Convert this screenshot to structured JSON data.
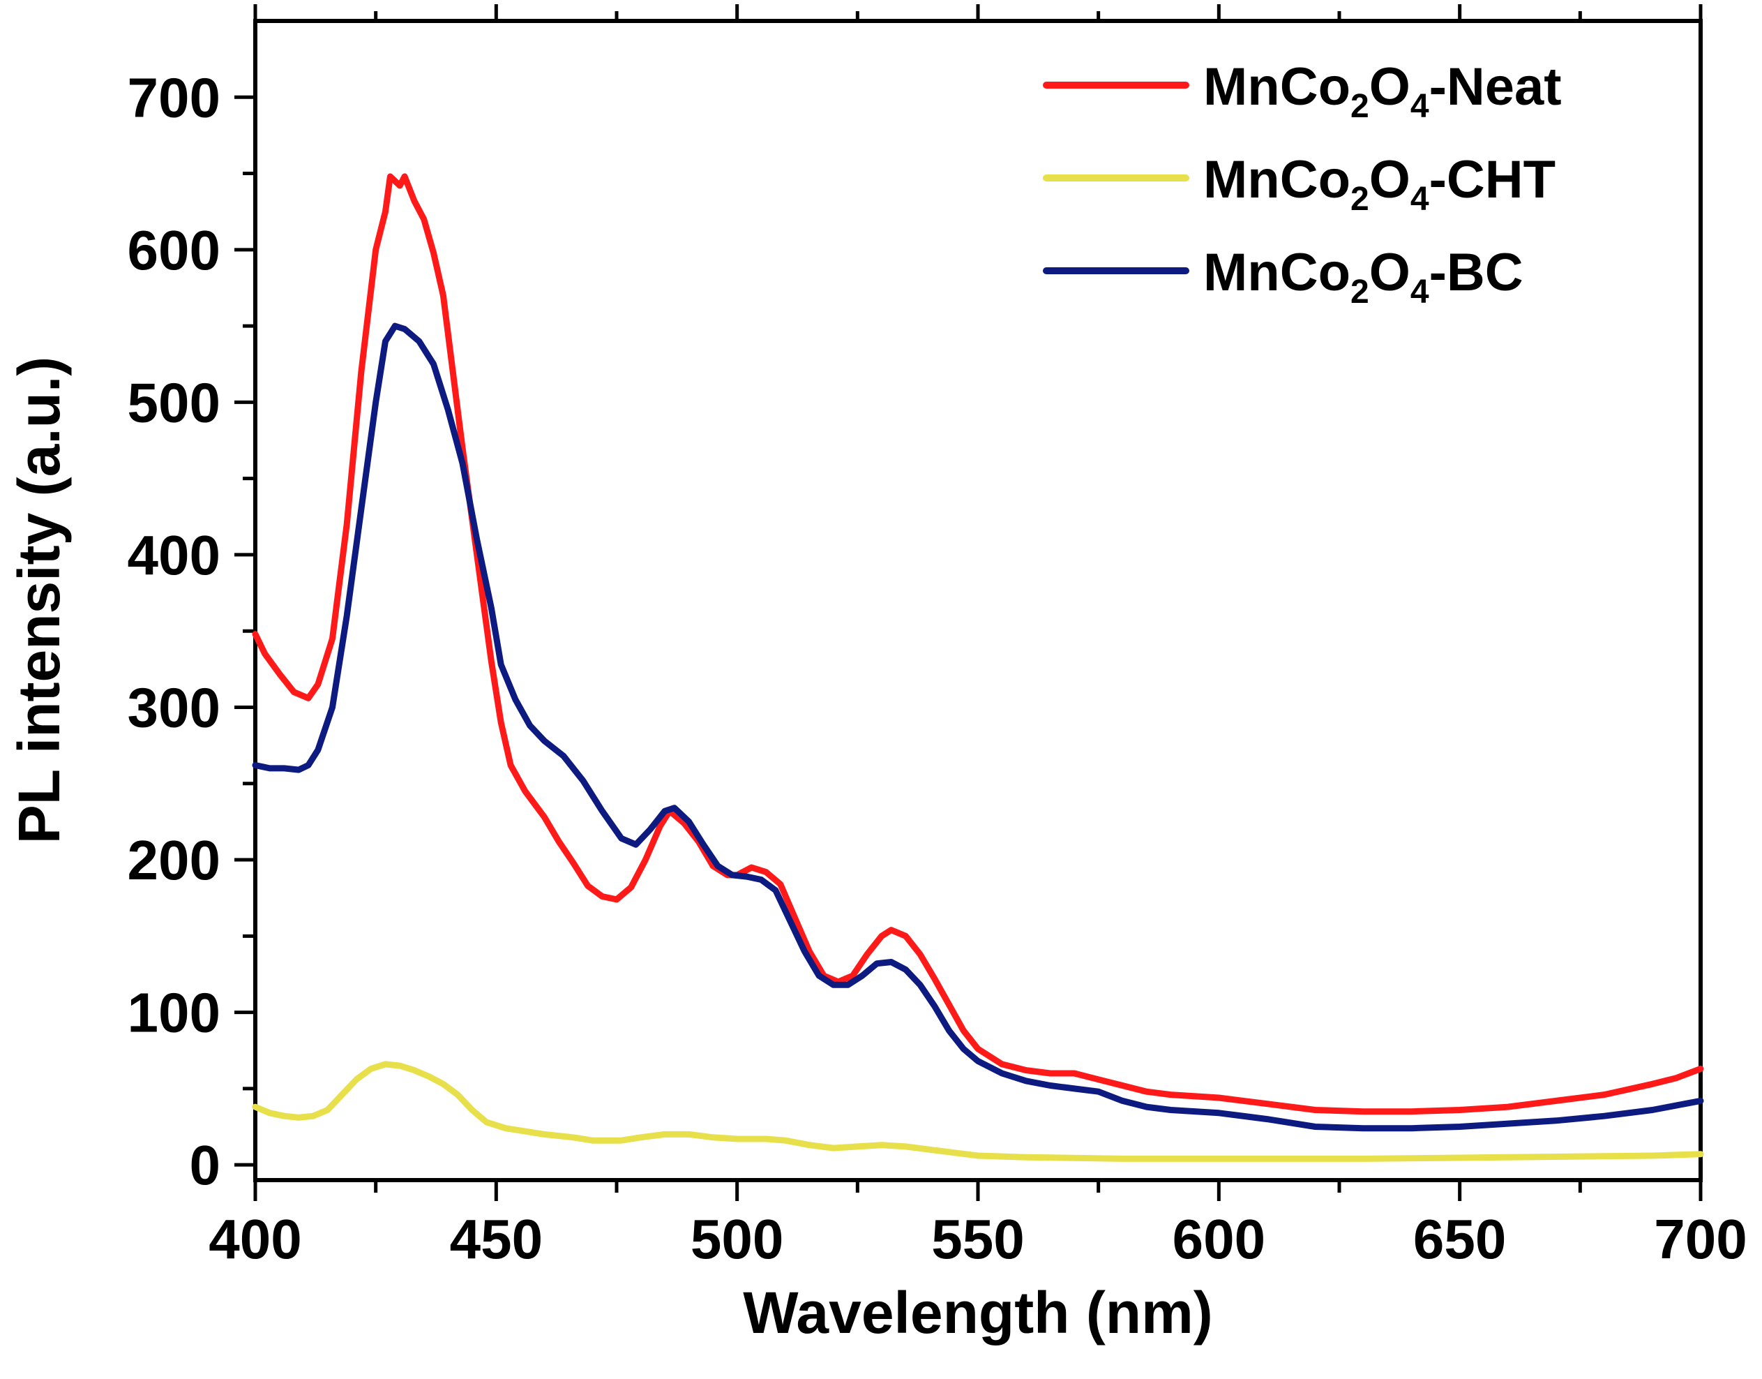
{
  "chart_data": {
    "type": "line",
    "title": "",
    "xlabel": "Wavelength (nm)",
    "ylabel": "PL intensity (a.u.)",
    "xlim": [
      400,
      700
    ],
    "ylim": [
      -10,
      750
    ],
    "xticks": [
      400,
      450,
      500,
      550,
      600,
      650,
      700
    ],
    "yticks": [
      0,
      100,
      200,
      300,
      400,
      500,
      600,
      700
    ],
    "legend_position": "top-right",
    "series": [
      {
        "name": "MnCo2O4-Neat",
        "legend": {
          "base": "MnCo",
          "sub1": "2",
          "mid": "O",
          "sub2": "4",
          "suffix": "-Neat"
        },
        "color": "#ff1a1a",
        "points": [
          [
            400,
            348
          ],
          [
            402,
            335
          ],
          [
            405,
            322
          ],
          [
            408,
            310
          ],
          [
            411,
            306
          ],
          [
            413,
            315
          ],
          [
            416,
            345
          ],
          [
            419,
            420
          ],
          [
            422,
            520
          ],
          [
            425,
            600
          ],
          [
            427,
            625
          ],
          [
            428,
            648
          ],
          [
            430,
            642
          ],
          [
            431,
            648
          ],
          [
            433,
            632
          ],
          [
            435,
            620
          ],
          [
            437,
            598
          ],
          [
            439,
            570
          ],
          [
            441,
            520
          ],
          [
            443,
            470
          ],
          [
            446,
            400
          ],
          [
            449,
            330
          ],
          [
            451,
            290
          ],
          [
            453,
            262
          ],
          [
            456,
            245
          ],
          [
            460,
            228
          ],
          [
            463,
            212
          ],
          [
            466,
            198
          ],
          [
            469,
            183
          ],
          [
            472,
            176
          ],
          [
            475,
            174
          ],
          [
            478,
            182
          ],
          [
            481,
            200
          ],
          [
            484,
            222
          ],
          [
            486,
            232
          ],
          [
            489,
            224
          ],
          [
            492,
            212
          ],
          [
            495,
            196
          ],
          [
            498,
            190
          ],
          [
            500,
            190
          ],
          [
            503,
            195
          ],
          [
            506,
            192
          ],
          [
            509,
            184
          ],
          [
            512,
            162
          ],
          [
            515,
            140
          ],
          [
            518,
            124
          ],
          [
            521,
            120
          ],
          [
            524,
            124
          ],
          [
            527,
            138
          ],
          [
            530,
            150
          ],
          [
            532,
            154
          ],
          [
            535,
            150
          ],
          [
            538,
            138
          ],
          [
            541,
            122
          ],
          [
            544,
            105
          ],
          [
            547,
            88
          ],
          [
            550,
            76
          ],
          [
            555,
            66
          ],
          [
            560,
            62
          ],
          [
            565,
            60
          ],
          [
            570,
            60
          ],
          [
            575,
            56
          ],
          [
            580,
            52
          ],
          [
            585,
            48
          ],
          [
            590,
            46
          ],
          [
            600,
            44
          ],
          [
            610,
            40
          ],
          [
            620,
            36
          ],
          [
            630,
            35
          ],
          [
            640,
            35
          ],
          [
            650,
            36
          ],
          [
            660,
            38
          ],
          [
            670,
            42
          ],
          [
            680,
            46
          ],
          [
            690,
            53
          ],
          [
            695,
            57
          ],
          [
            700,
            63
          ]
        ]
      },
      {
        "name": "MnCo2O4-CHT",
        "legend": {
          "base": "MnCo",
          "sub1": "2",
          "mid": "O",
          "sub2": "4",
          "suffix": "-CHT"
        },
        "color": "#e8e04a",
        "points": [
          [
            400,
            38
          ],
          [
            403,
            34
          ],
          [
            406,
            32
          ],
          [
            409,
            31
          ],
          [
            412,
            32
          ],
          [
            415,
            36
          ],
          [
            418,
            46
          ],
          [
            421,
            56
          ],
          [
            424,
            63
          ],
          [
            427,
            66
          ],
          [
            430,
            65
          ],
          [
            433,
            62
          ],
          [
            436,
            58
          ],
          [
            439,
            53
          ],
          [
            442,
            46
          ],
          [
            445,
            36
          ],
          [
            448,
            28
          ],
          [
            452,
            24
          ],
          [
            456,
            22
          ],
          [
            460,
            20
          ],
          [
            466,
            18
          ],
          [
            470,
            16
          ],
          [
            476,
            16
          ],
          [
            480,
            18
          ],
          [
            485,
            20
          ],
          [
            490,
            20
          ],
          [
            495,
            18
          ],
          [
            500,
            17
          ],
          [
            506,
            17
          ],
          [
            510,
            16
          ],
          [
            515,
            13
          ],
          [
            520,
            11
          ],
          [
            525,
            12
          ],
          [
            530,
            13
          ],
          [
            535,
            12
          ],
          [
            540,
            10
          ],
          [
            545,
            8
          ],
          [
            550,
            6
          ],
          [
            560,
            5
          ],
          [
            580,
            4
          ],
          [
            600,
            4
          ],
          [
            630,
            4
          ],
          [
            660,
            5
          ],
          [
            690,
            6
          ],
          [
            700,
            7
          ]
        ]
      },
      {
        "name": "MnCo2O4-BC",
        "legend": {
          "base": "MnCo",
          "sub1": "2",
          "mid": "O",
          "sub2": "4",
          "suffix": "-BC"
        },
        "color": "#0d1a80",
        "points": [
          [
            400,
            262
          ],
          [
            403,
            260
          ],
          [
            406,
            260
          ],
          [
            409,
            259
          ],
          [
            411,
            262
          ],
          [
            413,
            272
          ],
          [
            416,
            300
          ],
          [
            419,
            360
          ],
          [
            422,
            430
          ],
          [
            425,
            500
          ],
          [
            427,
            540
          ],
          [
            429,
            550
          ],
          [
            431,
            548
          ],
          [
            434,
            540
          ],
          [
            437,
            525
          ],
          [
            440,
            495
          ],
          [
            443,
            460
          ],
          [
            446,
            410
          ],
          [
            449,
            365
          ],
          [
            451,
            328
          ],
          [
            454,
            305
          ],
          [
            457,
            288
          ],
          [
            460,
            278
          ],
          [
            464,
            268
          ],
          [
            468,
            252
          ],
          [
            472,
            232
          ],
          [
            476,
            214
          ],
          [
            479,
            210
          ],
          [
            482,
            220
          ],
          [
            485,
            232
          ],
          [
            487,
            234
          ],
          [
            490,
            225
          ],
          [
            493,
            210
          ],
          [
            496,
            196
          ],
          [
            499,
            190
          ],
          [
            502,
            189
          ],
          [
            505,
            187
          ],
          [
            508,
            180
          ],
          [
            511,
            160
          ],
          [
            514,
            140
          ],
          [
            517,
            124
          ],
          [
            520,
            118
          ],
          [
            523,
            118
          ],
          [
            526,
            124
          ],
          [
            529,
            132
          ],
          [
            532,
            133
          ],
          [
            535,
            128
          ],
          [
            538,
            118
          ],
          [
            541,
            104
          ],
          [
            544,
            88
          ],
          [
            547,
            76
          ],
          [
            550,
            68
          ],
          [
            555,
            60
          ],
          [
            560,
            55
          ],
          [
            565,
            52
          ],
          [
            570,
            50
          ],
          [
            575,
            48
          ],
          [
            580,
            42
          ],
          [
            585,
            38
          ],
          [
            590,
            36
          ],
          [
            600,
            34
          ],
          [
            610,
            30
          ],
          [
            620,
            25
          ],
          [
            630,
            24
          ],
          [
            640,
            24
          ],
          [
            650,
            25
          ],
          [
            660,
            27
          ],
          [
            670,
            29
          ],
          [
            680,
            32
          ],
          [
            690,
            36
          ],
          [
            695,
            39
          ],
          [
            700,
            42
          ]
        ]
      }
    ]
  }
}
